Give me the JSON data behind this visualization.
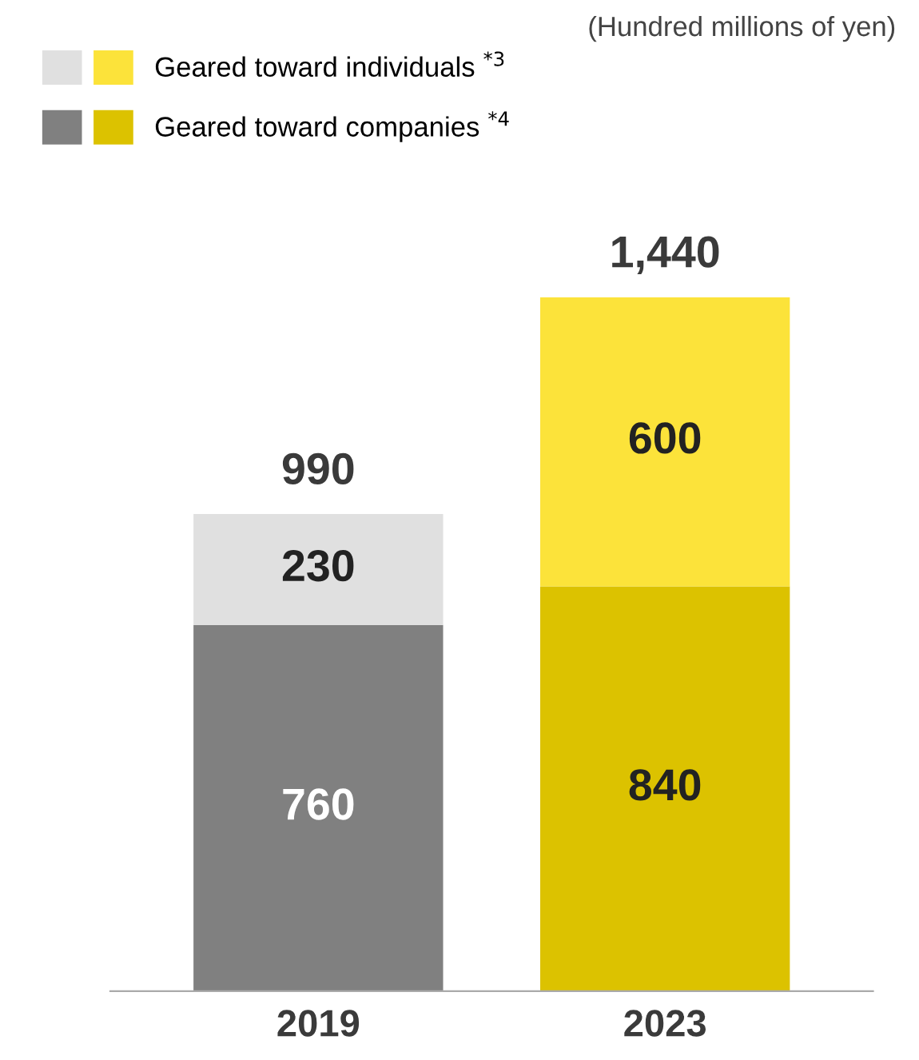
{
  "chart_data": {
    "type": "bar",
    "stacked": true,
    "categories": [
      "2019",
      "2023"
    ],
    "series": [
      {
        "name": "Geared toward companies $^{*4}$",
        "colors": [
          "#808080",
          "#dcc200"
        ],
        "values": [
          760,
          840
        ]
      },
      {
        "name": "Geared toward individuals $^{*3}$",
        "colors": [
          "#e0e0e0",
          "#fce33a"
        ],
        "values": [
          230,
          600
        ]
      }
    ],
    "data_labels": true,
    "totals": [
      "990",
      "1,440"
    ],
    "legend": "top left",
    "annotations": [
      "(Hundred millions of yen)"
    ],
    "tick_labels": "x",
    "grid": false
  }
}
